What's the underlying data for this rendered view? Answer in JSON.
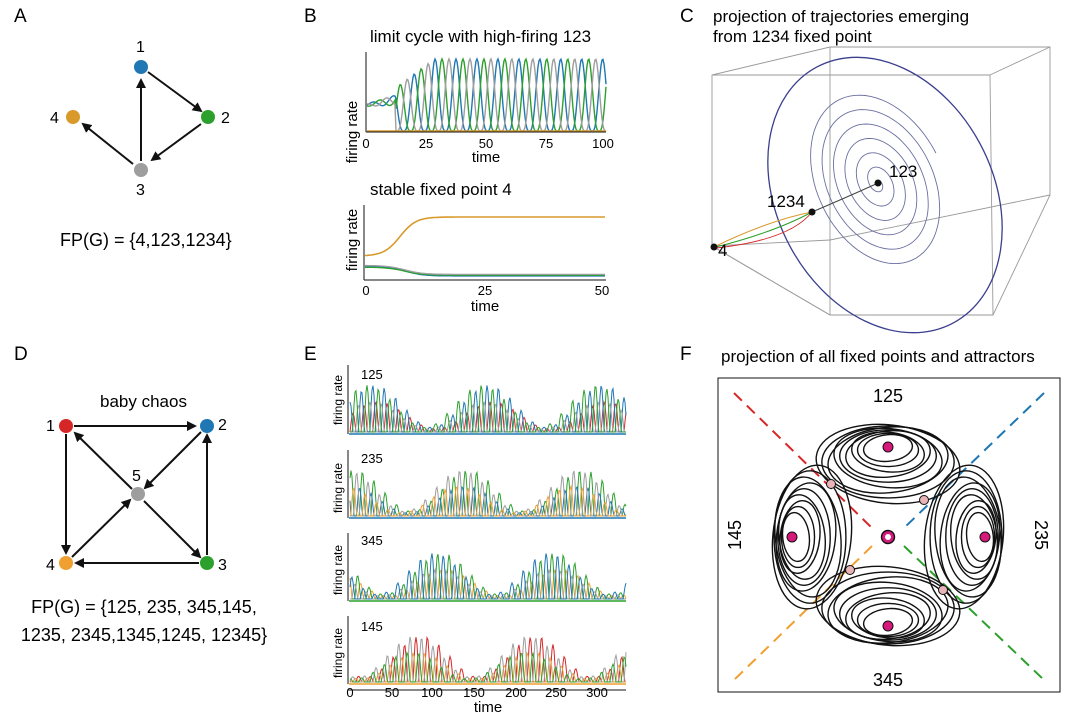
{
  "colors": {
    "n1": "#1f77b4",
    "n2": "#2ca02c",
    "n3": "#9e9e9e",
    "n4": "#d99a2b",
    "d1": "#d62728",
    "d2": "#1f77b4",
    "d3": "#2ca02c",
    "d4": "#f0a030",
    "d5": "#9e9e9e",
    "magenta": "#d6197a",
    "pink": "#e8b4b8"
  },
  "panels": {
    "A": {
      "label": "A",
      "nodes": [
        {
          "id": "1"
        },
        {
          "id": "2"
        },
        {
          "id": "3"
        },
        {
          "id": "4"
        }
      ],
      "fp": "FP(G) = {4,123,1234}"
    },
    "B": {
      "label": "B",
      "top_title": "limit cycle with high-firing 123",
      "top_ylabel": "firing rate",
      "top_xlabel": "time",
      "top_ticks": [
        "0",
        "25",
        "50",
        "75",
        "100"
      ],
      "bottom_title": "stable fixed point 4",
      "bottom_ylabel": "firing rate",
      "bottom_xlabel": "time",
      "bottom_ticks": [
        "0",
        "25",
        "50"
      ]
    },
    "C": {
      "label": "C",
      "title1": "projection of trajectories emerging",
      "title2": "from 1234 fixed point",
      "pt_123": "123",
      "pt_1234": "1234",
      "pt_4": "4"
    },
    "D": {
      "label": "D",
      "title": "baby chaos",
      "nodes": [
        {
          "id": "1"
        },
        {
          "id": "2"
        },
        {
          "id": "3"
        },
        {
          "id": "4"
        },
        {
          "id": "5"
        }
      ],
      "fp1": "FP(G) = {125, 235, 345,145,",
      "fp2": "1235, 2345,1345,1245, 12345}"
    },
    "E": {
      "label": "E",
      "ylabel": "firing rate",
      "traces": [
        {
          "name": "125"
        },
        {
          "name": "235"
        },
        {
          "name": "345"
        },
        {
          "name": "145"
        }
      ],
      "xlabel": "time",
      "ticks": [
        "0",
        "50",
        "100",
        "150",
        "200",
        "250",
        "300"
      ]
    },
    "F": {
      "label": "F",
      "title": "projection of all fixed points and attractors",
      "lobes": {
        "top": "125",
        "right": "235",
        "bottom": "345",
        "left": "145"
      }
    }
  }
}
